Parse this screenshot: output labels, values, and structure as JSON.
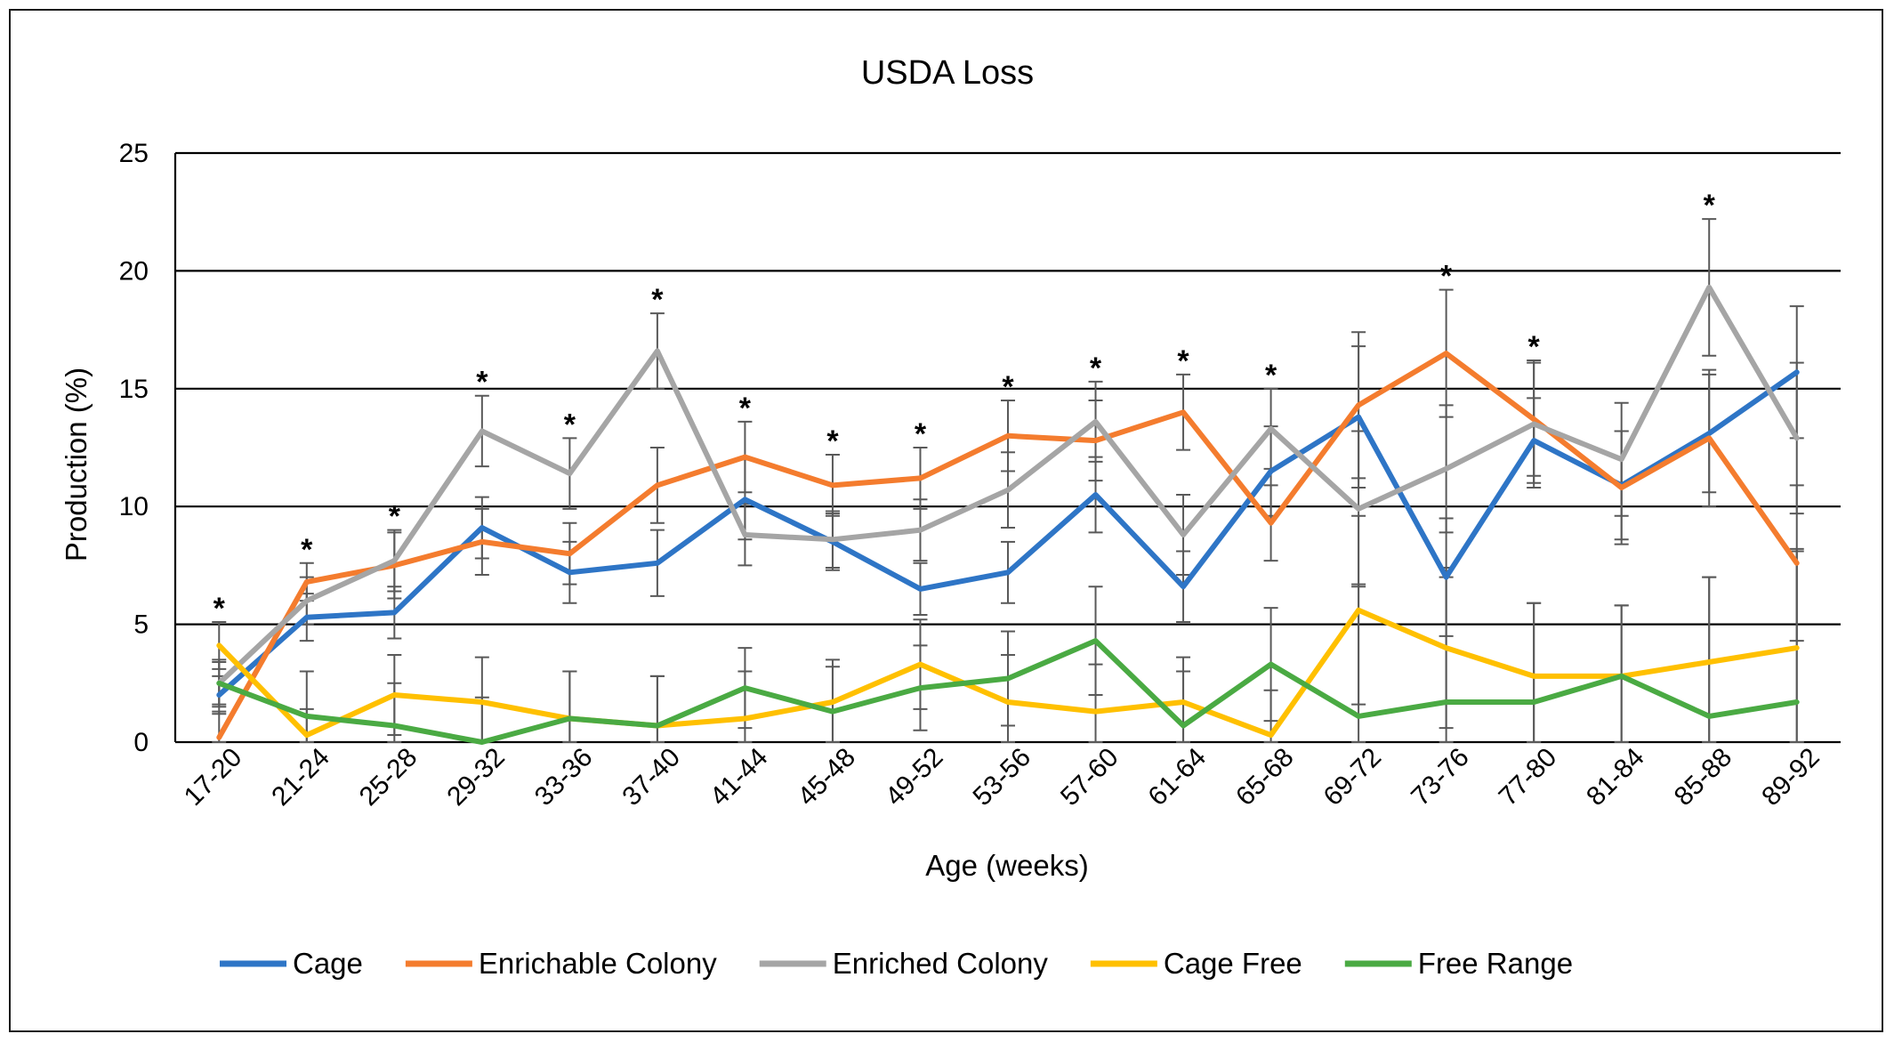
{
  "chart_data": {
    "type": "line",
    "title": "USDA Loss",
    "xlabel": "Age (weeks)",
    "ylabel": "Production (%)",
    "ylim": [
      0,
      25
    ],
    "yticks": [
      0,
      5,
      10,
      15,
      20,
      25
    ],
    "grid": "horizontal",
    "legend_position": "bottom",
    "categories": [
      "17-20",
      "21-24",
      "25-28",
      "29-32",
      "33-36",
      "37-40",
      "41-44",
      "45-48",
      "49-52",
      "53-56",
      "57-60",
      "61-64",
      "65-68",
      "69-72",
      "73-76",
      "77-80",
      "81-84",
      "85-88",
      "89-92"
    ],
    "significance_marker": "*",
    "significant_categories": [
      "17-20",
      "21-24",
      "25-28",
      "29-32",
      "33-36",
      "37-40",
      "41-44",
      "45-48",
      "49-52",
      "53-56",
      "57-60",
      "61-64",
      "65-68",
      "73-76",
      "77-80",
      "85-88"
    ],
    "series": [
      {
        "name": "Cage",
        "color": "#2e75c6",
        "values": [
          2.0,
          5.3,
          5.5,
          9.1,
          7.2,
          7.6,
          10.3,
          8.5,
          6.5,
          7.2,
          10.5,
          6.6,
          11.5,
          13.8,
          7.0,
          12.8,
          10.9,
          13.1,
          15.7
        ],
        "errors": [
          0.8,
          1.0,
          1.1,
          1.3,
          1.3,
          1.4,
          1.7,
          1.2,
          1.1,
          1.3,
          1.6,
          1.5,
          1.9,
          3.0,
          2.5,
          1.8,
          2.3,
          2.5,
          2.8
        ]
      },
      {
        "name": "Enrichable Colony",
        "color": "#f47c2e",
        "values": [
          0.2,
          6.8,
          7.5,
          8.5,
          8.0,
          10.9,
          12.1,
          10.9,
          11.2,
          13.0,
          12.8,
          14.0,
          9.3,
          14.3,
          16.5,
          13.7,
          10.8,
          12.9,
          7.6
        ],
        "errors": [
          1.1,
          0.8,
          1.4,
          1.4,
          1.3,
          1.6,
          1.5,
          1.3,
          1.3,
          1.5,
          1.7,
          1.6,
          1.6,
          3.1,
          2.7,
          2.4,
          2.4,
          2.9,
          3.3
        ]
      },
      {
        "name": "Enriched Colony",
        "color": "#a5a5a5",
        "values": [
          2.5,
          6.0,
          7.7,
          13.2,
          11.4,
          16.6,
          8.8,
          8.6,
          9.0,
          10.7,
          13.6,
          8.8,
          13.3,
          9.9,
          11.6,
          13.5,
          12.0,
          19.3,
          12.9
        ],
        "errors": [
          0.9,
          1.0,
          1.3,
          1.5,
          1.5,
          1.6,
          1.3,
          1.2,
          1.3,
          1.6,
          1.7,
          1.7,
          1.7,
          3.3,
          2.7,
          2.7,
          2.4,
          2.9,
          3.2
        ]
      },
      {
        "name": "Cage Free",
        "color": "#ffc000",
        "values": [
          4.1,
          0.3,
          2.0,
          1.7,
          1.0,
          0.7,
          1.0,
          1.7,
          3.3,
          1.7,
          1.3,
          1.7,
          0.3,
          5.6,
          4.0,
          2.8,
          2.8,
          3.4,
          4.0
        ],
        "errors": [
          1.0,
          1.1,
          1.7,
          1.9,
          2.0,
          2.1,
          2.0,
          1.8,
          1.9,
          2.0,
          2.0,
          1.9,
          1.9,
          4.0,
          3.4,
          3.1,
          3.0,
          3.6,
          4.2
        ]
      },
      {
        "name": "Free Range",
        "color": "#4aaa43",
        "values": [
          2.5,
          1.1,
          0.7,
          0.0,
          1.0,
          0.7,
          2.3,
          1.3,
          2.3,
          2.7,
          4.3,
          0.7,
          3.3,
          1.1,
          1.7,
          1.7,
          2.8,
          1.1,
          1.7
        ],
        "errors": [
          1.0,
          1.9,
          1.8,
          1.9,
          2.0,
          2.1,
          1.7,
          1.9,
          1.8,
          2.0,
          2.3,
          2.3,
          2.4,
          5.6,
          5.3,
          4.2,
          3.0,
          5.9,
          6.4
        ]
      }
    ]
  }
}
